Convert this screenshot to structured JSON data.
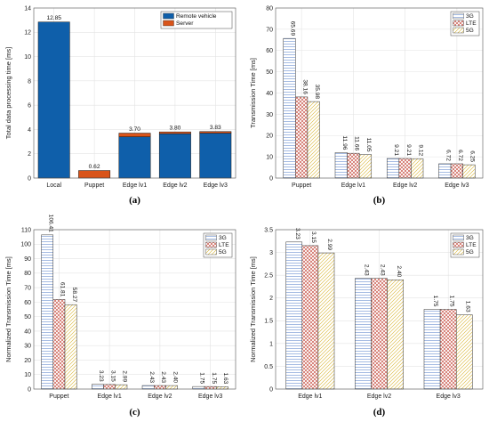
{
  "chart_data": [
    {
      "type": "bar",
      "stacked": true,
      "caption": "(a)",
      "ylabel": "Total data processing time [ms]",
      "ylim": [
        0,
        14
      ],
      "yticks": [
        0,
        2,
        4,
        6,
        8,
        10,
        12,
        14
      ],
      "categories": [
        "Local",
        "Puppet",
        "Edge lv1",
        "Edge lv2",
        "Edge lv3"
      ],
      "series": [
        {
          "name": "Remote vehicle",
          "color": "#0f5faa",
          "values": [
            12.85,
            0,
            3.4,
            3.65,
            3.7
          ]
        },
        {
          "name": "Server",
          "color": "#d9541a",
          "values": [
            0,
            0.62,
            0.3,
            0.15,
            0.13
          ]
        }
      ],
      "totals": [
        "12.85",
        "0.62",
        "3.70",
        "3.80",
        "3.83"
      ],
      "legend_position": "top-right",
      "grid": true
    },
    {
      "type": "bar",
      "caption": "(b)",
      "ylabel": "Transmission Time [ms]",
      "ylim": [
        0,
        80
      ],
      "yticks": [
        0,
        10,
        20,
        30,
        40,
        50,
        60,
        70,
        80
      ],
      "categories": [
        "Puppet",
        "Edge lv1",
        "Edge lv2",
        "Edge lv3"
      ],
      "series": [
        {
          "name": "3G",
          "pattern": "horizontal",
          "values": [
            65.69,
            11.96,
            9.21,
            6.72
          ],
          "labels": [
            "65.69",
            "11.96",
            "9.21",
            "6.72"
          ]
        },
        {
          "name": "LTE",
          "pattern": "cross",
          "values": [
            38.16,
            11.66,
            9.21,
            6.72
          ],
          "labels": [
            "38.16",
            "11.66",
            "9.21",
            "6.72"
          ]
        },
        {
          "name": "5G",
          "pattern": "diagonal",
          "values": [
            35.98,
            11.05,
            9.12,
            6.25
          ],
          "labels": [
            "35.98",
            "11.05",
            "9.12",
            "6.25"
          ]
        }
      ],
      "legend_position": "top-right",
      "grid": true
    },
    {
      "type": "bar",
      "caption": "(c)",
      "ylabel": "Normalized Transmission Time [ms]",
      "ylim": [
        0,
        110
      ],
      "yticks": [
        0,
        10,
        20,
        30,
        40,
        50,
        60,
        70,
        80,
        90,
        100,
        110
      ],
      "categories": [
        "Puppet",
        "Edge lv1",
        "Edge lv2",
        "Edge lv3"
      ],
      "series": [
        {
          "name": "3G",
          "pattern": "horizontal",
          "values": [
            106.41,
            3.23,
            2.43,
            1.75
          ],
          "labels": [
            "106.41",
            "3.23",
            "2.43",
            "1.75"
          ]
        },
        {
          "name": "LTE",
          "pattern": "cross",
          "values": [
            61.81,
            3.15,
            2.43,
            1.75
          ],
          "labels": [
            "61.81",
            "3.15",
            "2.43",
            "1.75"
          ]
        },
        {
          "name": "5G",
          "pattern": "diagonal",
          "values": [
            58.27,
            2.99,
            2.4,
            1.63
          ],
          "labels": [
            "58.27",
            "2.99",
            "2.40",
            "1.63"
          ]
        }
      ],
      "legend_position": "top-right",
      "grid": true
    },
    {
      "type": "bar",
      "caption": "(d)",
      "ylabel": "Normalized Transmission Time [ms]",
      "ylim": [
        0,
        3.5
      ],
      "yticks": [
        "0",
        "0.5",
        "1",
        "1.5",
        "2",
        "2.5",
        "3",
        "3.5"
      ],
      "categories": [
        "Edge lv1",
        "Edge lv2",
        "Edge lv3"
      ],
      "series": [
        {
          "name": "3G",
          "pattern": "horizontal",
          "values": [
            3.23,
            2.43,
            1.75
          ],
          "labels": [
            "3.23",
            "2.43",
            "1.75"
          ]
        },
        {
          "name": "LTE",
          "pattern": "cross",
          "values": [
            3.15,
            2.43,
            1.75
          ],
          "labels": [
            "3.15",
            "2.43",
            "1.75"
          ]
        },
        {
          "name": "5G",
          "pattern": "diagonal",
          "values": [
            2.99,
            2.4,
            1.63
          ],
          "labels": [
            "2.99",
            "2.40",
            "1.63"
          ]
        }
      ],
      "legend_position": "top-right",
      "grid": true
    }
  ]
}
